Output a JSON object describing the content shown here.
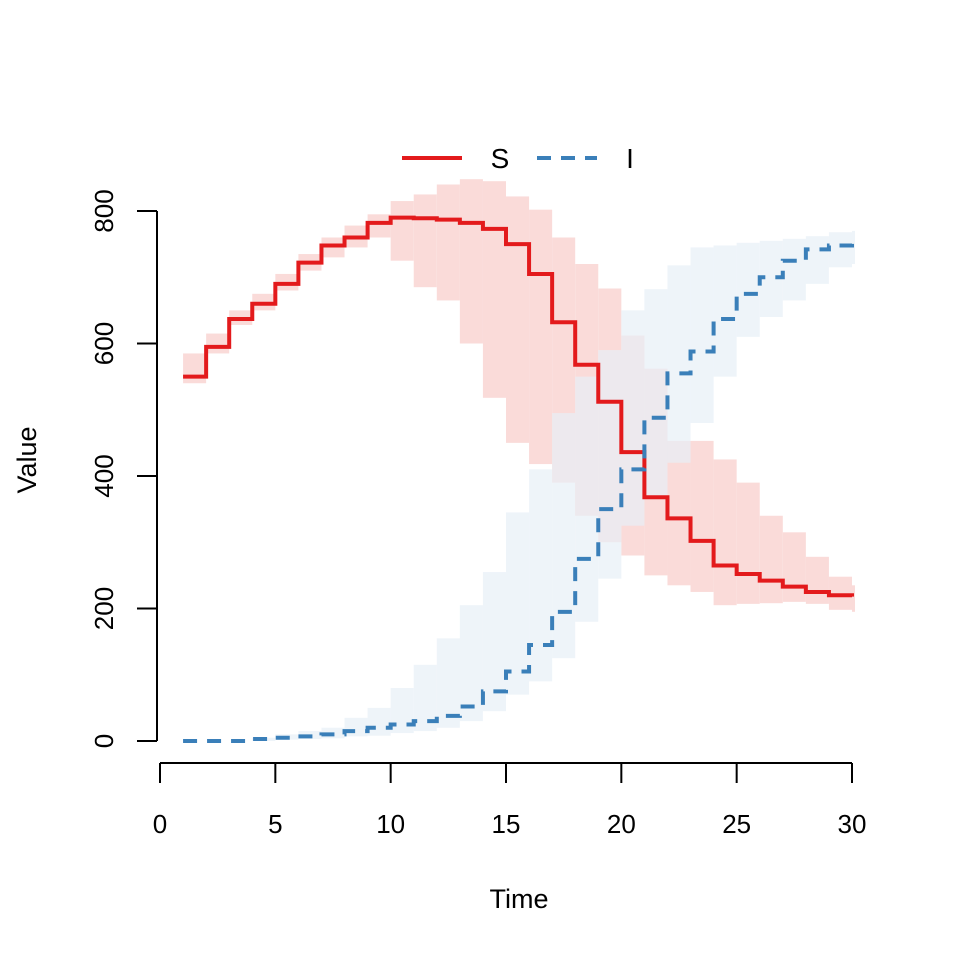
{
  "chart_data": {
    "type": "line",
    "step": true,
    "title": "",
    "xlabel": "Time",
    "ylabel": "Value",
    "xlim": [
      0,
      30
    ],
    "ylim": [
      0,
      800
    ],
    "xticks": [
      "0",
      "5",
      "10",
      "15",
      "20",
      "25",
      "30"
    ],
    "yticks": [
      "0",
      "200",
      "400",
      "600",
      "800"
    ],
    "legend_position": "top",
    "grid": false,
    "x": [
      1,
      2,
      3,
      4,
      5,
      6,
      7,
      8,
      9,
      10,
      11,
      12,
      13,
      14,
      15,
      16,
      17,
      18,
      19,
      20,
      21,
      22,
      23,
      24,
      25,
      26,
      27,
      28,
      29,
      30
    ],
    "series": [
      {
        "name": "S",
        "color": "#e31a1c",
        "band_color": "#fadbd9",
        "line_style": "solid",
        "values": [
          550,
          595,
          637,
          660,
          690,
          722,
          748,
          760,
          782,
          790,
          789,
          787,
          782,
          773,
          750,
          705,
          632,
          568,
          512,
          436,
          368,
          336,
          302,
          265,
          252,
          242,
          233,
          225,
          220,
          218
        ],
        "lower": [
          540,
          585,
          628,
          650,
          680,
          710,
          730,
          745,
          760,
          725,
          685,
          665,
          600,
          518,
          450,
          418,
          390,
          340,
          300,
          280,
          250,
          235,
          225,
          205,
          207,
          208,
          210,
          207,
          198,
          195
        ],
        "upper": [
          585,
          615,
          650,
          675,
          705,
          735,
          760,
          778,
          795,
          815,
          825,
          840,
          848,
          845,
          822,
          802,
          760,
          720,
          683,
          612,
          562,
          453,
          453,
          425,
          390,
          340,
          315,
          278,
          248,
          235
        ]
      },
      {
        "name": "I",
        "color": "#3a7fb9",
        "band_color": "#e7eff7",
        "line_style": "dashed",
        "values": [
          0,
          0,
          0,
          3,
          5,
          7,
          10,
          15,
          20,
          25,
          30,
          38,
          52,
          75,
          105,
          145,
          195,
          275,
          350,
          410,
          488,
          555,
          588,
          637,
          675,
          700,
          725,
          742,
          748,
          752
        ],
        "lower": [
          0,
          0,
          0,
          0,
          2,
          3,
          4,
          7,
          8,
          12,
          15,
          20,
          30,
          45,
          70,
          90,
          125,
          180,
          245,
          325,
          370,
          420,
          480,
          550,
          610,
          640,
          665,
          690,
          715,
          720
        ],
        "upper": [
          0,
          0,
          0,
          5,
          10,
          15,
          20,
          35,
          50,
          80,
          115,
          155,
          205,
          255,
          345,
          410,
          495,
          550,
          590,
          650,
          682,
          718,
          745,
          748,
          752,
          755,
          758,
          762,
          768,
          770
        ]
      }
    ]
  }
}
